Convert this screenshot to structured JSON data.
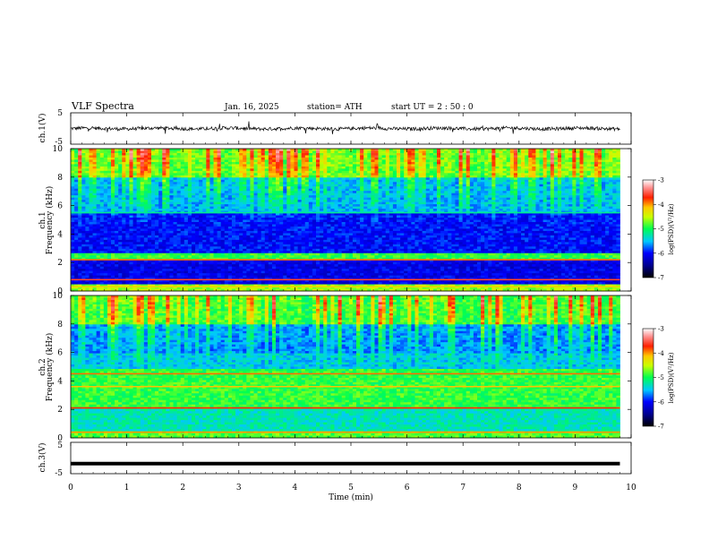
{
  "header": {
    "title": "VLF  Spectra",
    "date": "Jan. 16, 2025",
    "station": "station= ATH",
    "start": "start  UT  =   2  : 50 : 0"
  },
  "chart_data": [
    {
      "type": "line",
      "panel": "ch1-waveform",
      "ylabel": "ch.1(V)",
      "ylim": [
        -5,
        5
      ],
      "ytick_labels": [
        "5",
        "-5"
      ],
      "xlim": [
        0,
        10
      ],
      "description_values": "noisy waveform around 0 V, amplitude about ±0.5 V with occasional spikes up to about ±2 V"
    },
    {
      "type": "heatmap",
      "panel": "ch1-spectrogram",
      "ylabel_top": "ch.1",
      "ylabel": "Frequency  (kHz)",
      "ylim": [
        0,
        10
      ],
      "ytick_labels": [
        "0",
        "2",
        "4",
        "6",
        "8",
        "10"
      ],
      "xlim": [
        0,
        9.8
      ],
      "colorbar": {
        "label": "log(PSD)(V²/Hz)",
        "range": [
          -7,
          -3
        ],
        "tick_labels": [
          "-3",
          "-4",
          "-5",
          "-6",
          "-7"
        ]
      }
    },
    {
      "type": "heatmap",
      "panel": "ch2-spectrogram",
      "ylabel_top": "ch.2",
      "ylabel": "Frequency  (kHz)",
      "ylim": [
        0,
        10
      ],
      "ytick_labels": [
        "0",
        "2",
        "4",
        "6",
        "8",
        "10"
      ],
      "xlim": [
        0,
        9.8
      ],
      "colorbar": {
        "label": "log(PSD)(V²/Hz)",
        "range": [
          -7,
          -3
        ],
        "tick_labels": [
          "-3",
          "-4",
          "-5",
          "-6",
          "-7"
        ]
      }
    },
    {
      "type": "line",
      "panel": "ch3-waveform",
      "ylabel": "ch.3(V)",
      "ylim": [
        -5,
        5
      ],
      "ytick_labels": [
        "5",
        "-5"
      ],
      "xlim": [
        0,
        10
      ],
      "level": -1.8
    }
  ],
  "xaxis": {
    "label": "Time  (min)",
    "ticks": [
      0,
      1,
      2,
      3,
      4,
      5,
      6,
      7,
      8,
      9,
      10
    ],
    "tick_labels": [
      "0",
      "1",
      "2",
      "3",
      "4",
      "5",
      "6",
      "7",
      "8",
      "9",
      "10"
    ]
  }
}
